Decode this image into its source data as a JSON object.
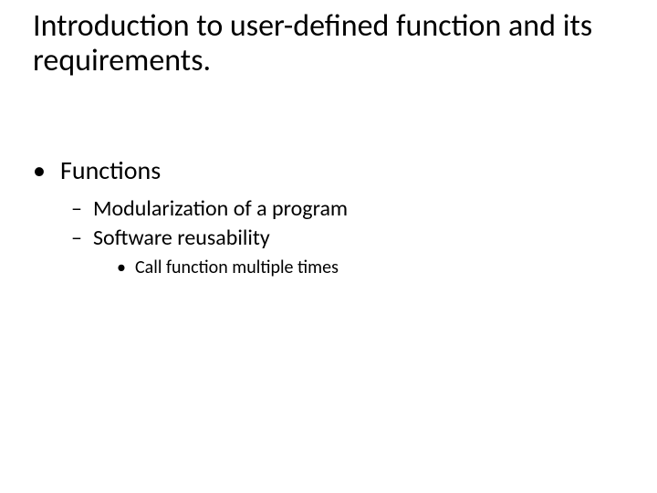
{
  "slide": {
    "title": "Introduction to user-defined function and its requirements.",
    "title_fontsize": 34,
    "title_color": "#000000",
    "background_color": "#ffffff",
    "body": {
      "lvl1_bullet_char": "•",
      "lvl2_bullet_char": "–",
      "lvl3_bullet_char": "•",
      "lvl1_fontsize": 28,
      "lvl2_fontsize": 24,
      "lvl3_fontsize": 20,
      "items": [
        {
          "text": "Functions",
          "children": [
            {
              "text": "Modularization of a program",
              "children": []
            },
            {
              "text": "Software reusability",
              "children": [
                {
                  "text": "Call function multiple times"
                }
              ]
            }
          ]
        }
      ]
    }
  }
}
